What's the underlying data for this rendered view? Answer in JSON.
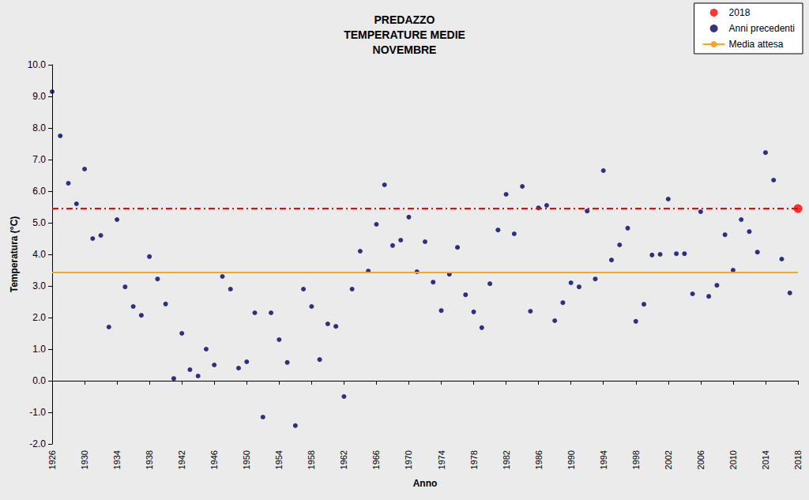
{
  "chart_data": {
    "type": "scatter",
    "title": "PREDAZZO\nTEMPERATURE MEDIE\nNOVEMBRE",
    "x_label": "Anno",
    "y_label": "Temperatura (°C)",
    "xlim": [
      1926,
      2018
    ],
    "xticks": [
      1926,
      1930,
      1934,
      1938,
      1942,
      1946,
      1950,
      1954,
      1958,
      1962,
      1966,
      1970,
      1974,
      1978,
      1982,
      1986,
      1990,
      1994,
      1998,
      2002,
      2006,
      2010,
      2014,
      2018
    ],
    "ylim": [
      -2,
      10
    ],
    "yticks": [
      {
        "value": -2,
        "label": "-2.0"
      },
      {
        "value": -1,
        "label": "-1.0"
      },
      {
        "value": 0,
        "label": "0.0"
      },
      {
        "value": 1,
        "label": "1.0"
      },
      {
        "value": 2,
        "label": "2.0"
      },
      {
        "value": 3,
        "label": "3.0"
      },
      {
        "value": 4,
        "label": "4.0"
      },
      {
        "value": 5,
        "label": "5.0"
      },
      {
        "value": 6,
        "label": "6.0"
      },
      {
        "value": 7,
        "label": "7.0"
      },
      {
        "value": 8,
        "label": "8.0"
      },
      {
        "value": 9,
        "label": "9.0"
      },
      {
        "value": 10,
        "label": "10.0"
      }
    ],
    "grid": false,
    "legend": "top-right",
    "series": [
      {
        "name": "2018",
        "type": "scatter",
        "color": "#ff0000",
        "marker": "circle",
        "line_style": "dashdot",
        "x": [
          2018
        ],
        "values": [
          5.45
        ]
      },
      {
        "name": "Anni precedenti",
        "type": "scatter",
        "color": "#000066",
        "marker": "circle",
        "x": [
          1926,
          1927,
          1928,
          1929,
          1930,
          1931,
          1932,
          1933,
          1934,
          1935,
          1936,
          1937,
          1938,
          1939,
          1940,
          1941,
          1942,
          1943,
          1944,
          1945,
          1946,
          1947,
          1948,
          1949,
          1950,
          1951,
          1952,
          1953,
          1954,
          1955,
          1956,
          1957,
          1958,
          1959,
          1960,
          1961,
          1962,
          1963,
          1964,
          1965,
          1966,
          1967,
          1968,
          1969,
          1970,
          1971,
          1972,
          1973,
          1974,
          1975,
          1976,
          1977,
          1978,
          1979,
          1980,
          1981,
          1982,
          1983,
          1984,
          1985,
          1986,
          1987,
          1988,
          1989,
          1990,
          1991,
          1992,
          1993,
          1994,
          1995,
          1996,
          1997,
          1998,
          1999,
          2000,
          2001,
          2002,
          2003,
          2004,
          2005,
          2006,
          2007,
          2008,
          2009,
          2010,
          2011,
          2012,
          2013,
          2014,
          2015,
          2016,
          2017
        ],
        "values": [
          9.15,
          7.75,
          6.25,
          5.6,
          6.7,
          4.5,
          4.6,
          1.7,
          5.1,
          2.97,
          2.35,
          2.07,
          3.93,
          3.22,
          2.43,
          0.07,
          1.5,
          0.35,
          0.15,
          1.0,
          0.5,
          3.3,
          2.9,
          0.4,
          0.6,
          2.15,
          -1.15,
          2.15,
          1.3,
          0.58,
          -1.42,
          2.9,
          2.35,
          0.67,
          1.8,
          1.72,
          -0.5,
          2.9,
          4.1,
          3.47,
          4.95,
          6.2,
          4.28,
          4.45,
          5.18,
          3.45,
          4.4,
          3.12,
          2.22,
          3.37,
          4.22,
          2.72,
          2.18,
          1.68,
          3.07,
          4.77,
          5.9,
          4.65,
          6.15,
          2.2,
          5.47,
          5.55,
          1.9,
          2.47,
          3.1,
          2.97,
          5.37,
          3.22,
          6.65,
          3.82,
          4.3,
          4.83,
          1.88,
          2.42,
          3.98,
          4.0,
          5.75,
          4.02,
          4.02,
          2.75,
          5.35,
          2.67,
          3.02,
          4.62,
          3.5,
          5.1,
          4.72,
          4.07,
          7.22,
          6.35,
          3.85,
          2.78
        ]
      },
      {
        "name": "Media attesa",
        "type": "hline",
        "color": "#f5a623",
        "line_style": "solid",
        "values": [
          3.42
        ]
      }
    ]
  }
}
